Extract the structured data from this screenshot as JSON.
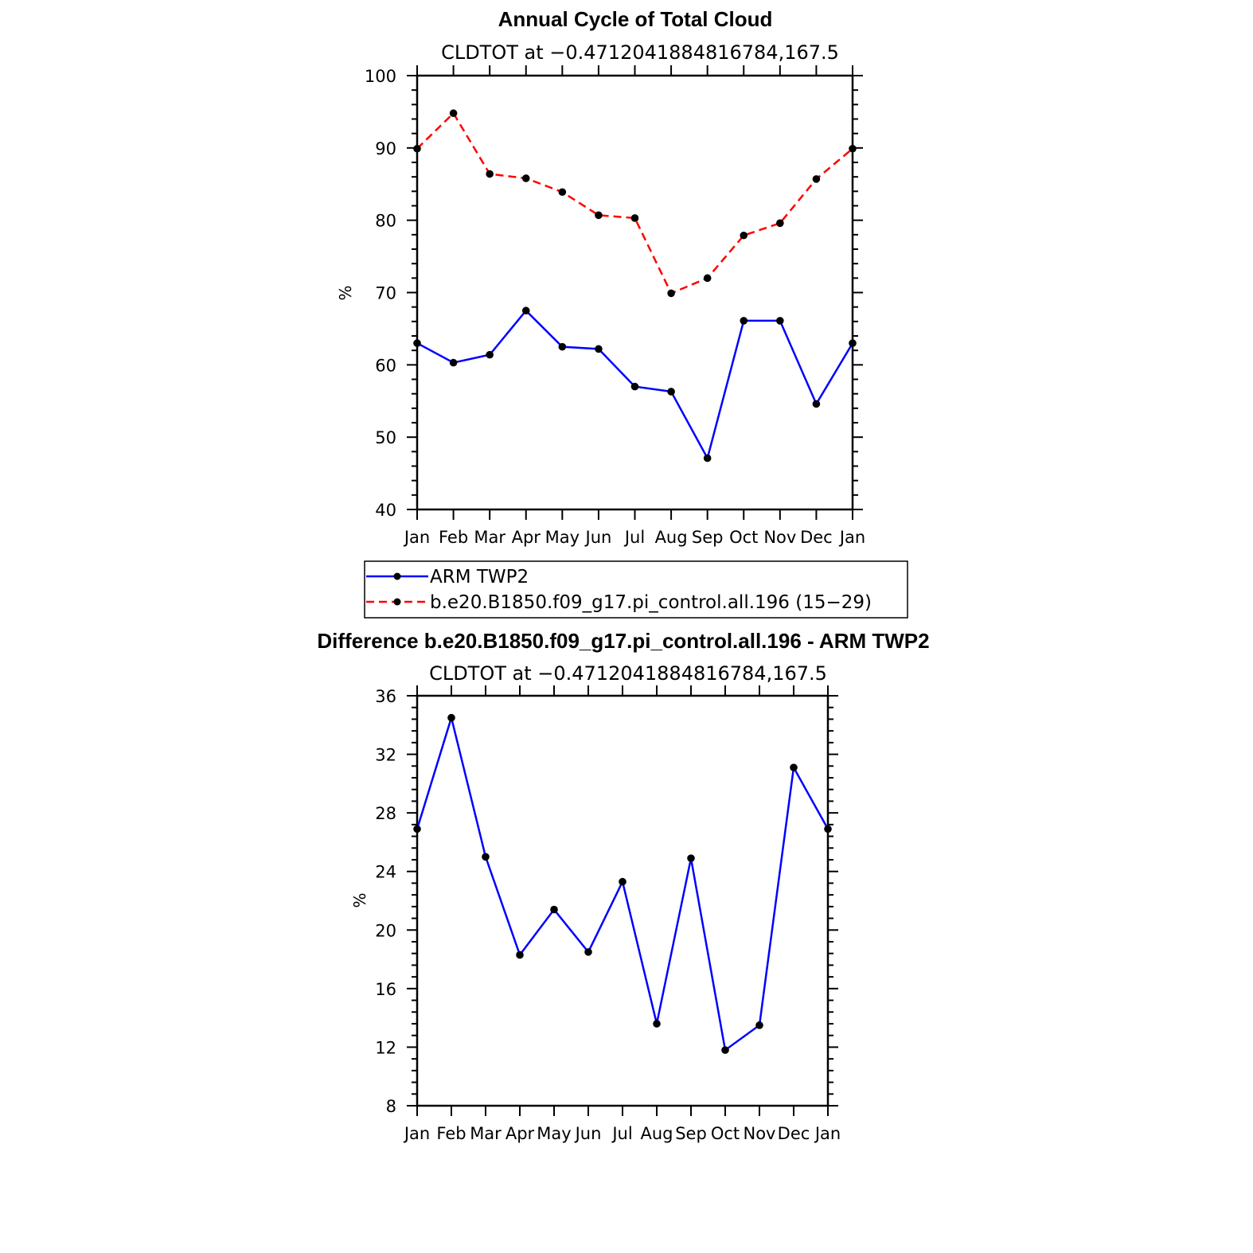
{
  "chart_data": [
    {
      "type": "line",
      "title": "Annual Cycle of Total Cloud",
      "subtitle": "CLDTOT at −0.4712041884816784,167.5",
      "xlabel": "",
      "ylabel": "%",
      "categories": [
        "Jan",
        "Feb",
        "Mar",
        "Apr",
        "May",
        "Jun",
        "Jul",
        "Aug",
        "Sep",
        "Oct",
        "Nov",
        "Dec",
        "Jan"
      ],
      "ylim": [
        40,
        100
      ],
      "yticks": [
        40,
        50,
        60,
        70,
        80,
        90,
        100
      ],
      "series": [
        {
          "name": "ARM TWP2",
          "color": "#0000ff",
          "dash": "solid",
          "values": [
            63.0,
            60.3,
            61.4,
            67.5,
            62.5,
            62.2,
            57.0,
            56.3,
            47.1,
            66.1,
            66.1,
            54.6,
            63.0
          ]
        },
        {
          "name": "b.e20.B1850.f09_g17.pi_control.all.196 (15−29)",
          "color": "#ff0000",
          "dash": "dashed",
          "values": [
            89.9,
            94.8,
            86.4,
            85.8,
            83.9,
            80.7,
            80.3,
            69.9,
            72.0,
            77.9,
            79.6,
            85.7,
            89.9
          ]
        }
      ],
      "legend": "bottom",
      "grid": false
    },
    {
      "type": "line",
      "title": "Difference b.e20.B1850.f09_g17.pi_control.all.196 - ARM TWP2",
      "subtitle": "CLDTOT at −0.4712041884816784,167.5",
      "xlabel": "",
      "ylabel": "%",
      "categories": [
        "Jan",
        "Feb",
        "Mar",
        "Apr",
        "May",
        "Jun",
        "Jul",
        "Aug",
        "Sep",
        "Oct",
        "Nov",
        "Dec",
        "Jan"
      ],
      "ylim": [
        8,
        36
      ],
      "yticks": [
        8,
        12,
        16,
        20,
        24,
        28,
        32,
        36
      ],
      "series": [
        {
          "color": "#0000ff",
          "dash": "solid",
          "values": [
            26.9,
            34.5,
            25.0,
            18.3,
            21.4,
            18.5,
            23.3,
            13.6,
            24.9,
            11.8,
            13.5,
            31.1,
            26.9
          ]
        }
      ],
      "legend": "none",
      "grid": false
    }
  ]
}
